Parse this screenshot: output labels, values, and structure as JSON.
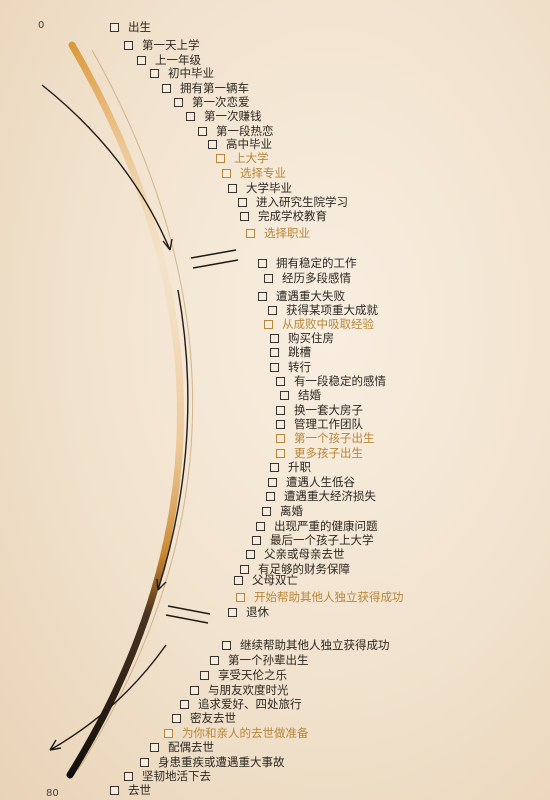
{
  "axis": {
    "start_label": "0",
    "end_label": "80"
  },
  "colors": {
    "highlight": "#b7863a",
    "text": "#2b2722",
    "arc_dark": "#1a1410",
    "arc_gold": "#d99a3a"
  },
  "milestones": [
    {
      "text": "出生",
      "highlight": false
    },
    {
      "text": "第一天上学",
      "highlight": false
    },
    {
      "text": "上一年级",
      "highlight": false
    },
    {
      "text": "初中毕业",
      "highlight": false
    },
    {
      "text": "拥有第一辆车",
      "highlight": false
    },
    {
      "text": "第一次恋爱",
      "highlight": false
    },
    {
      "text": "第一次赚钱",
      "highlight": false
    },
    {
      "text": "第一段热恋",
      "highlight": false
    },
    {
      "text": "高中毕业",
      "highlight": false
    },
    {
      "text": "上大学",
      "highlight": true
    },
    {
      "text": "选择专业",
      "highlight": true
    },
    {
      "text": "大学毕业",
      "highlight": false
    },
    {
      "text": "进入研究生院学习",
      "highlight": false
    },
    {
      "text": "完成学校教育",
      "highlight": false
    },
    {
      "text": "选择职业",
      "highlight": true
    },
    {
      "text": "拥有稳定的工作",
      "highlight": false
    },
    {
      "text": "经历多段感情",
      "highlight": false
    },
    {
      "text": "遭遇重大失败",
      "highlight": false
    },
    {
      "text": "获得某项重大成就",
      "highlight": false
    },
    {
      "text": "从成败中吸取经验",
      "highlight": true
    },
    {
      "text": "购买住房",
      "highlight": false
    },
    {
      "text": "跳槽",
      "highlight": false
    },
    {
      "text": "转行",
      "highlight": false
    },
    {
      "text": "有一段稳定的感情",
      "highlight": false
    },
    {
      "text": "结婚",
      "highlight": false
    },
    {
      "text": "换一套大房子",
      "highlight": false
    },
    {
      "text": "管理工作团队",
      "highlight": false
    },
    {
      "text": "第一个孩子出生",
      "highlight": true
    },
    {
      "text": "更多孩子出生",
      "highlight": true
    },
    {
      "text": "升职",
      "highlight": false
    },
    {
      "text": "遭遇人生低谷",
      "highlight": false
    },
    {
      "text": "遭遇重大经济损失",
      "highlight": false
    },
    {
      "text": "离婚",
      "highlight": false
    },
    {
      "text": "出现严重的健康问题",
      "highlight": false
    },
    {
      "text": "最后一个孩子上大学",
      "highlight": false
    },
    {
      "text": "父亲或母亲去世",
      "highlight": false
    },
    {
      "text": "有足够的财务保障",
      "highlight": false
    },
    {
      "text": "父母双亡",
      "highlight": false
    },
    {
      "text": "开始帮助其他人独立获得成功",
      "highlight": true
    },
    {
      "text": "退休",
      "highlight": false
    },
    {
      "text": "继续帮助其他人独立获得成功",
      "highlight": false
    },
    {
      "text": "第一个孙辈出生",
      "highlight": false
    },
    {
      "text": "享受天伦之乐",
      "highlight": false
    },
    {
      "text": "与朋友欢度时光",
      "highlight": false
    },
    {
      "text": "追求爱好、四处旅行",
      "highlight": false
    },
    {
      "text": "密友去世",
      "highlight": false
    },
    {
      "text": "为你和亲人的去世做准备",
      "highlight": true
    },
    {
      "text": "配偶去世",
      "highlight": false
    },
    {
      "text": "身患重疾或遭遇重大事故",
      "highlight": false
    },
    {
      "text": "坚韧地活下去",
      "highlight": false
    },
    {
      "text": "去世",
      "highlight": false
    }
  ]
}
